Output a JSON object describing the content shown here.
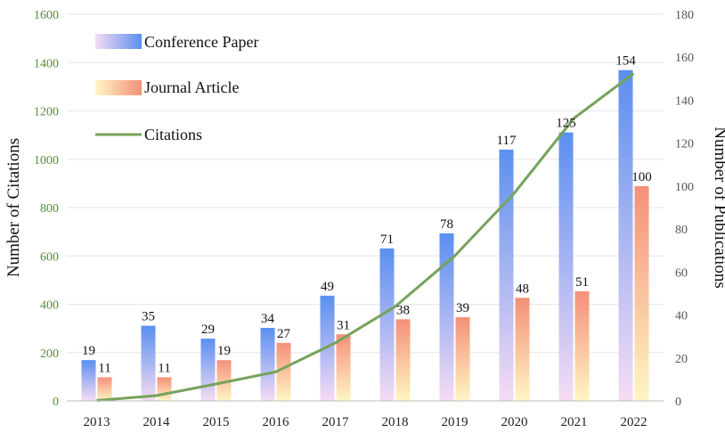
{
  "chart_data": {
    "type": "bar+line",
    "categories": [
      "2013",
      "2014",
      "2015",
      "2016",
      "2017",
      "2018",
      "2019",
      "2020",
      "2021",
      "2022"
    ],
    "series": [
      {
        "name": "Conference Paper",
        "axis": "right",
        "kind": "bar",
        "values": [
          19,
          35,
          29,
          34,
          49,
          71,
          78,
          117,
          125,
          154
        ]
      },
      {
        "name": "Journal Article",
        "axis": "right",
        "kind": "bar",
        "values": [
          11,
          11,
          19,
          27,
          31,
          38,
          39,
          48,
          51,
          100
        ]
      },
      {
        "name": "Citations",
        "axis": "left",
        "kind": "line",
        "values": [
          2,
          22,
          70,
          120,
          240,
          390,
          600,
          860,
          1170,
          1355
        ]
      }
    ],
    "ylabel_left": "Number of Citations",
    "ylabel_right": "Number of Publications",
    "ylim_left": [
      0,
      1600
    ],
    "ylim_right": [
      0,
      180
    ],
    "yticks_left": [
      "0",
      "200",
      "400",
      "600",
      "800",
      "1000",
      "1200",
      "1400",
      "1600"
    ],
    "yticks_right": [
      "0",
      "20",
      "40",
      "60",
      "80",
      "100",
      "120",
      "140",
      "160",
      "180"
    ],
    "legend_position": "top-left",
    "grid": true
  },
  "colors": {
    "conference_top": "#5b8ff0",
    "conference_bottom": "#f6dcf3",
    "journal_top": "#f4907a",
    "journal_bottom": "#fff6c4",
    "citations_line": "#76a35a"
  }
}
